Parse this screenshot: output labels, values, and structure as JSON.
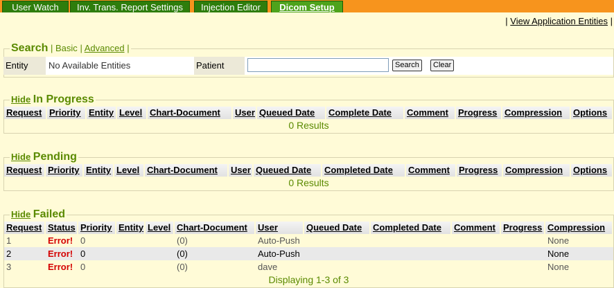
{
  "tabs": [
    "User Watch",
    "Inv. Trans. Report Settings",
    "Injection Editor",
    "Dicom Setup"
  ],
  "separator": "|",
  "top_link": "View Application Entities",
  "search": {
    "title": "Search",
    "modes": [
      "Basic",
      "Advanced"
    ],
    "entity_label": "Entity",
    "entity_value": "No Available Entities",
    "patient_label": "Patient",
    "buttons": [
      "Search",
      "Clear"
    ]
  },
  "sections": [
    {
      "toggle": "Hide",
      "title": "In Progress",
      "columns": [
        "Request",
        "Priority",
        "Entity",
        "Level",
        "Chart-Document",
        "User",
        "Queued Date",
        "Complete Date",
        "Comment",
        "Progress",
        "Compression",
        "Options"
      ],
      "footer": "0 Results"
    },
    {
      "toggle": "Hide",
      "title": "Pending",
      "columns": [
        "Request",
        "Priority",
        "Entity",
        "Level",
        "Chart-Document",
        "User",
        "Queued Date",
        "Completed Date",
        "Comment",
        "Progress",
        "Compression",
        "Options"
      ],
      "footer": "0 Results"
    },
    {
      "toggle": "Hide",
      "title": "Failed",
      "columns": [
        "Request",
        "Status",
        "Priority",
        "Entity",
        "Level",
        "Chart-Document",
        "User",
        "Queued Date",
        "Completed Date",
        "Comment",
        "Progress",
        "Compression"
      ],
      "rows": [
        [
          1,
          "Error!",
          0,
          null,
          null,
          "(0)",
          "Auto-Push",
          null,
          null,
          null,
          null,
          "None"
        ],
        [
          2,
          "Error!",
          0,
          null,
          null,
          "(0)",
          "Auto-Push",
          null,
          null,
          null,
          null,
          "None"
        ],
        [
          3,
          "Error!",
          0,
          null,
          null,
          "(0)",
          "dave",
          null,
          null,
          null,
          null,
          "None"
        ]
      ],
      "footer": "Displaying 1-3 of 3"
    }
  ]
}
